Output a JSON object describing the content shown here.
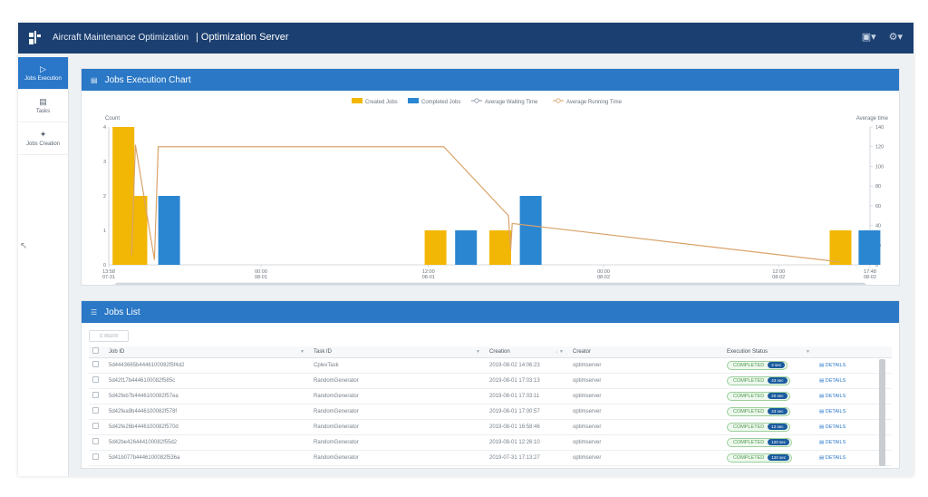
{
  "header": {
    "app_title": "Aircraft Maintenance Optimization",
    "server_title": "| Optimization Server",
    "icons": [
      "clipboard-icon",
      "gear-icon"
    ]
  },
  "sidebar": {
    "items": [
      {
        "label": "Jobs Execution",
        "icon": "play-icon",
        "active": true
      },
      {
        "label": "Tasks",
        "icon": "clipboard-icon",
        "active": false
      },
      {
        "label": "Jobs Creation",
        "icon": "magic-wand-icon",
        "active": false
      }
    ]
  },
  "chart_panel": {
    "title": "Jobs Execution Chart"
  },
  "chart_data": {
    "type": "bar",
    "legend": {
      "placement": "top-center",
      "created": "Created Jobs",
      "completed": "Completed Jobs",
      "waiting": "Average Waiting Time",
      "running": "Average Running Time"
    },
    "ylabel": "Count",
    "y2label": "Average time",
    "ylim": [
      0,
      4
    ],
    "y2lim": [
      0,
      140
    ],
    "y_ticks": [
      "0",
      "1",
      "2",
      "3",
      "4"
    ],
    "y2_ticks": [
      "0",
      "20",
      "40",
      "60",
      "80",
      "100",
      "120",
      "140"
    ],
    "x_ticks": [
      {
        "label": "13:58",
        "sub": "07-31",
        "t": 0
      },
      {
        "label": "00:00",
        "sub": "08-01",
        "t": 0.2
      },
      {
        "label": "12:00",
        "sub": "08-01",
        "t": 0.42
      },
      {
        "label": "00:00",
        "sub": "08-02",
        "t": 0.65
      },
      {
        "label": "12:00",
        "sub": "08-02",
        "t": 0.88
      },
      {
        "label": "17:48",
        "sub": "08-02",
        "t": 1.0
      }
    ],
    "created_bars": [
      {
        "t": 0.005,
        "value": 4
      },
      {
        "t": 0.022,
        "value": 2
      },
      {
        "t": 0.415,
        "value": 1
      },
      {
        "t": 0.5,
        "value": 1
      },
      {
        "t": 0.947,
        "value": 1
      }
    ],
    "completed_bars": [
      {
        "t": 0.065,
        "value": 2
      },
      {
        "t": 0.455,
        "value": 1
      },
      {
        "t": 0.54,
        "value": 2
      },
      {
        "t": 0.985,
        "value": 1
      }
    ],
    "running_line": [
      {
        "t": 0.03,
        "value": 10
      },
      {
        "t": 0.035,
        "value": 122
      },
      {
        "t": 0.06,
        "value": 5
      },
      {
        "t": 0.065,
        "value": 120
      },
      {
        "t": 0.44,
        "value": 120
      },
      {
        "t": 0.525,
        "value": 50
      },
      {
        "t": 0.528,
        "value": 15
      },
      {
        "t": 0.53,
        "value": 42
      },
      {
        "t": 0.96,
        "value": 3
      }
    ],
    "colors": {
      "created": "#f2b705",
      "completed": "#2a86d1",
      "running": "#d9a36a",
      "waiting": "#8b96a3"
    }
  },
  "list_panel": {
    "title": "Jobs List",
    "refresh_label": "C REFR",
    "columns": [
      "Job ID",
      "Task ID",
      "Creation",
      "Creator",
      "Execution Status"
    ],
    "rows": [
      {
        "job_id": "5d4443665b4446100082f5f4d2",
        "task_id": "CplexTask",
        "creation": "2019-08-02 14:06:23",
        "creator": "optimserver",
        "status": "COMPLETED",
        "duration": "4 sec",
        "details": "DETAILS"
      },
      {
        "job_id": "5d42f17b4446100082f585c",
        "task_id": "RandomGenerator",
        "creation": "2019-08-01 17:03:13",
        "creator": "optimserver",
        "status": "COMPLETED",
        "duration": "43 sec",
        "details": "DETAILS"
      },
      {
        "job_id": "5d42feb7b4446100082f57ea",
        "task_id": "RandomGenerator",
        "creation": "2019-08-01 17:03:11",
        "creator": "optimserver",
        "status": "COMPLETED",
        "duration": "20 sec",
        "details": "DETAILS"
      },
      {
        "job_id": "5d42fea9b4446100082f578f",
        "task_id": "RandomGenerator",
        "creation": "2019-08-01 17:00:57",
        "creator": "optimserver",
        "status": "COMPLETED",
        "duration": "43 sec",
        "details": "DETAILS"
      },
      {
        "job_id": "5d42fe26b4446100082f570d",
        "task_id": "RandomGenerator",
        "creation": "2019-08-01 16:58:46",
        "creator": "optimserver",
        "status": "COMPLETED",
        "duration": "12 sec",
        "details": "DETAILS"
      },
      {
        "job_id": "5d42be426444100082f55d2",
        "task_id": "RandomGenerator",
        "creation": "2019-08-01 12:26:10",
        "creator": "optimserver",
        "status": "COMPLETED",
        "duration": "120 sec",
        "details": "DETAILS"
      },
      {
        "job_id": "5d41b077b4446100082f536a",
        "task_id": "RandomGenerator",
        "creation": "2019-07-31 17:13:27",
        "creator": "optimserver",
        "status": "COMPLETED",
        "duration": "120 sec",
        "details": "DETAILS"
      }
    ]
  }
}
